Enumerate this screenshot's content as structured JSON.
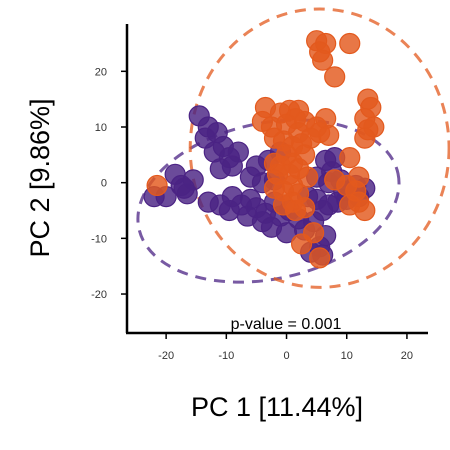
{
  "chart_data": {
    "type": "scatter",
    "xlabel": "PC 1 [11.44%]",
    "ylabel": "PC 2 [9.86%]",
    "xlim": [
      -26.5,
      23.5
    ],
    "ylim": [
      -27,
      28.5
    ],
    "x_ticks": [
      -20,
      -10,
      0,
      10,
      20
    ],
    "y_ticks": [
      -20,
      -10,
      0,
      10,
      20
    ],
    "annotation": "p-value = 0.001",
    "grid": false,
    "legend": "none",
    "series": [
      {
        "color": "#4b2384",
        "ellipse": {
          "cx": -3,
          "cy": -3.3,
          "rx": 22,
          "ry": 14,
          "angle": -12
        },
        "points": [
          [
            -14.5,
            12.0
          ],
          [
            -13.0,
            10.0
          ],
          [
            -11.5,
            9.0
          ],
          [
            -13.5,
            8.0
          ],
          [
            -10.5,
            6.5
          ],
          [
            -12.0,
            5.5
          ],
          [
            -9.5,
            4.5
          ],
          [
            -8.0,
            5.5
          ],
          [
            -9.0,
            3.0
          ],
          [
            -11.0,
            2.5
          ],
          [
            -5.0,
            3.0
          ],
          [
            -3.0,
            4.0
          ],
          [
            -1.0,
            5.5
          ],
          [
            -6.0,
            1.0
          ],
          [
            -4.0,
            0.0
          ],
          [
            -2.0,
            0.5
          ],
          [
            -18.5,
            1.5
          ],
          [
            -17.5,
            -0.5
          ],
          [
            -16.5,
            -2.0
          ],
          [
            -20.0,
            -2.5
          ],
          [
            -15.5,
            0.5
          ],
          [
            -22.0,
            -2.5
          ],
          [
            -17.0,
            -1.0
          ],
          [
            -13.0,
            -3.5
          ],
          [
            -11.0,
            -4.0
          ],
          [
            -9.5,
            -5.0
          ],
          [
            -9.0,
            -2.5
          ],
          [
            -7.5,
            -4.0
          ],
          [
            -6.5,
            -6.0
          ],
          [
            -6.0,
            -3.0
          ],
          [
            -5.0,
            -4.5
          ],
          [
            -4.0,
            -7.0
          ],
          [
            -3.5,
            -5.5
          ],
          [
            -2.5,
            -8.0
          ],
          [
            -2.0,
            -3.5
          ],
          [
            -1.0,
            -6.0
          ],
          [
            0.0,
            -9.0
          ],
          [
            0.5,
            -5.0
          ],
          [
            2.0,
            -6.5
          ],
          [
            3.0,
            -8.5
          ],
          [
            4.5,
            -7.0
          ],
          [
            6.0,
            -5.0
          ],
          [
            6.5,
            -9.5
          ],
          [
            7.0,
            -4.0
          ],
          [
            5.0,
            -3.0
          ],
          [
            3.5,
            -2.5
          ],
          [
            6.0,
            -13.0
          ],
          [
            5.5,
            -11.5
          ],
          [
            4.0,
            -12.5
          ],
          [
            8.5,
            -3.5
          ],
          [
            9.5,
            -1.5
          ],
          [
            10.0,
            -3.0
          ],
          [
            11.5,
            -0.5
          ],
          [
            13.0,
            -1.0
          ],
          [
            12.0,
            -2.5
          ],
          [
            6.5,
            4.0
          ],
          [
            8.0,
            4.5
          ],
          [
            7.5,
            2.0
          ],
          [
            7.0,
            0.0
          ],
          [
            9.0,
            0.5
          ],
          [
            5.0,
            1.0
          ]
        ]
      },
      {
        "color": "#e3591d",
        "ellipse": {
          "cx": 5.5,
          "cy": 6.2,
          "rx": 21.5,
          "ry": 25,
          "angle": 0
        },
        "points": [
          [
            5.0,
            25.5
          ],
          [
            6.5,
            25.0
          ],
          [
            10.5,
            25.0
          ],
          [
            5.5,
            23.5
          ],
          [
            6.0,
            22.0
          ],
          [
            8.0,
            19.0
          ],
          [
            13.5,
            15.0
          ],
          [
            14.0,
            13.5
          ],
          [
            13.0,
            11.5
          ],
          [
            14.5,
            10.0
          ],
          [
            13.5,
            9.5
          ],
          [
            13.0,
            8.0
          ],
          [
            -3.5,
            13.5
          ],
          [
            -1.0,
            12.5
          ],
          [
            0.5,
            13.0
          ],
          [
            2.0,
            13.0
          ],
          [
            1.5,
            11.5
          ],
          [
            3.0,
            11.0
          ],
          [
            0.0,
            10.5
          ],
          [
            -2.5,
            10.0
          ],
          [
            -4.0,
            11.0
          ],
          [
            5.0,
            10.0
          ],
          [
            5.5,
            9.0
          ],
          [
            6.5,
            11.5
          ],
          [
            7.0,
            8.5
          ],
          [
            4.0,
            8.0
          ],
          [
            2.0,
            9.0
          ],
          [
            -2.0,
            8.0
          ],
          [
            -0.5,
            7.5
          ],
          [
            1.0,
            6.5
          ],
          [
            2.5,
            7.0
          ],
          [
            3.0,
            5.0
          ],
          [
            0.0,
            5.0
          ],
          [
            -1.0,
            3.0
          ],
          [
            1.0,
            3.5
          ],
          [
            -2.0,
            3.5
          ],
          [
            -1.5,
            1.5
          ],
          [
            0.5,
            1.5
          ],
          [
            2.0,
            2.5
          ],
          [
            3.5,
            1.0
          ],
          [
            -2.0,
            -1.0
          ],
          [
            -0.5,
            -1.5
          ],
          [
            1.0,
            -0.5
          ],
          [
            2.0,
            -2.0
          ],
          [
            1.0,
            -3.5
          ],
          [
            -0.5,
            -4.0
          ],
          [
            1.5,
            -5.0
          ],
          [
            3.0,
            -4.5
          ],
          [
            8.0,
            0.5
          ],
          [
            10.0,
            -0.5
          ],
          [
            11.5,
            -1.5
          ],
          [
            10.5,
            -4.0
          ],
          [
            12.0,
            -3.5
          ],
          [
            13.0,
            -5.0
          ],
          [
            10.5,
            4.5
          ],
          [
            12.0,
            1.0
          ],
          [
            -21.5,
            -0.5
          ],
          [
            4.5,
            -9.0
          ],
          [
            2.5,
            -11.0
          ],
          [
            5.5,
            -13.5
          ]
        ]
      }
    ]
  }
}
